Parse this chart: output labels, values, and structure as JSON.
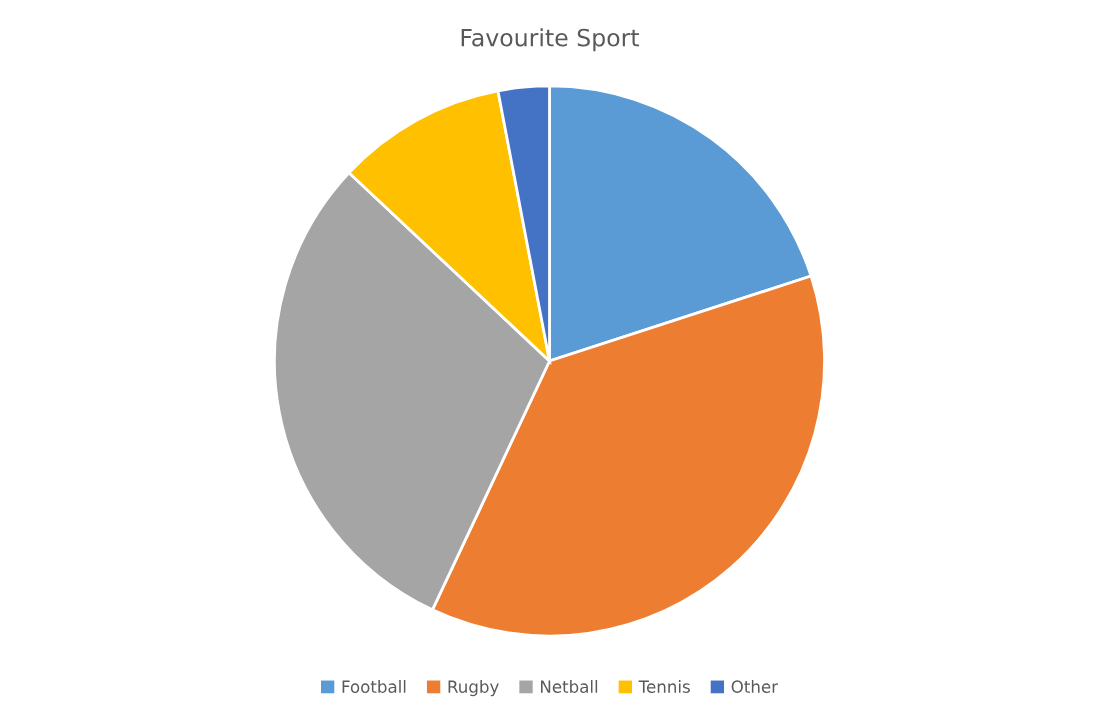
{
  "chart_data": {
    "type": "pie",
    "title": "Favourite Sport",
    "categories": [
      "Football",
      "Rugby",
      "Netball",
      "Tennis",
      "Other"
    ],
    "values": [
      20,
      37,
      30,
      10,
      3
    ],
    "colors": [
      "#5b9bd5",
      "#ed7d31",
      "#a5a5a5",
      "#ffc000",
      "#4472c4"
    ],
    "legend": "bottom"
  }
}
